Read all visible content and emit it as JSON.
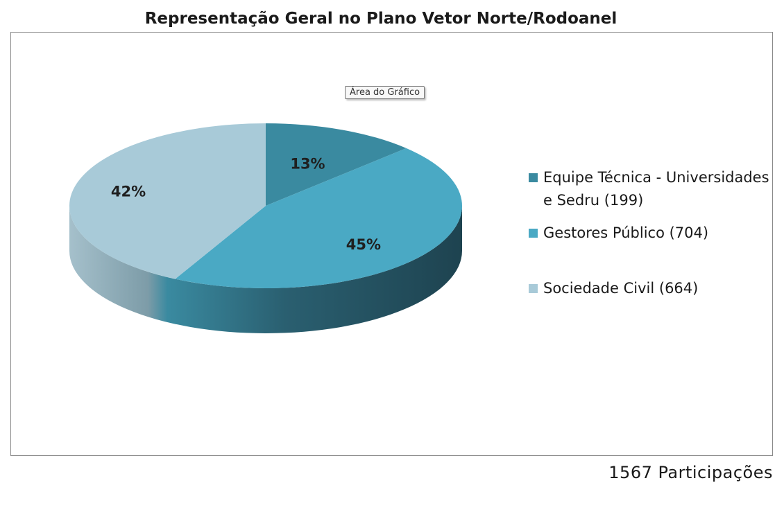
{
  "chart_data": {
    "type": "pie",
    "title": "Representação Geral no Plano Vetor Norte/Rodoanel",
    "labels": [
      "Equipe Técnica - Universidades e Sedru (199)",
      "Gestores Público (704)",
      "Sociedade Civil (664)"
    ],
    "values": [
      199,
      704,
      664
    ],
    "percent_labels": [
      "13%",
      "45%",
      "42%"
    ],
    "colors": [
      "#3a8aa0",
      "#4aa9c4",
      "#a8cad8"
    ],
    "legend": "right",
    "style": "3d"
  },
  "tooltip": "Área do Gráfico",
  "footer": "1567 Participações"
}
